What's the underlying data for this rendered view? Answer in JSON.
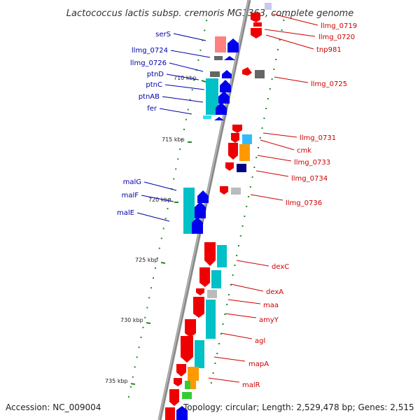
{
  "title": "Lactococcus lactis subsp. cremoris MG1363, complete genome",
  "accession": "Accession: NC_009004",
  "topology": "Topology: circular; Length: 2,529,478 bp; Genes: 2,515",
  "colors": {
    "forward": "#0000ee",
    "reverse": "#ee0000",
    "cyan": "#00c0c8",
    "orange": "#ff9900",
    "green": "#33cc33",
    "gray": "#888888",
    "darkblue": "#000080",
    "lightblue": "#33bbff",
    "tick": "#228b22",
    "backbone": "#888888"
  },
  "ticks": [
    {
      "label": "710 kbp"
    },
    {
      "label": "715 kbp"
    },
    {
      "label": "720 kbp"
    },
    {
      "label": "725 kbp"
    },
    {
      "label": "730 kbp"
    },
    {
      "label": "735 kbp"
    }
  ],
  "left_labels": [
    {
      "name": "serS"
    },
    {
      "name": "llmg_0724"
    },
    {
      "name": "llmg_0726"
    },
    {
      "name": "ptnD"
    },
    {
      "name": "ptnC"
    },
    {
      "name": "ptnAB"
    },
    {
      "name": "fer"
    },
    {
      "name": "malG"
    },
    {
      "name": "malF"
    },
    {
      "name": "malE"
    }
  ],
  "right_labels": [
    {
      "name": "llmg_0719"
    },
    {
      "name": "llmg_0720"
    },
    {
      "name": "tnp981"
    },
    {
      "name": "llmg_0725"
    },
    {
      "name": "llmg_0731"
    },
    {
      "name": "cmk"
    },
    {
      "name": "llmg_0733"
    },
    {
      "name": "llmg_0734"
    },
    {
      "name": "llmg_0736"
    },
    {
      "name": "dexC"
    },
    {
      "name": "dexA"
    },
    {
      "name": "maa"
    },
    {
      "name": "amyY"
    },
    {
      "name": "agl"
    },
    {
      "name": "mapA"
    },
    {
      "name": "malR"
    }
  ]
}
